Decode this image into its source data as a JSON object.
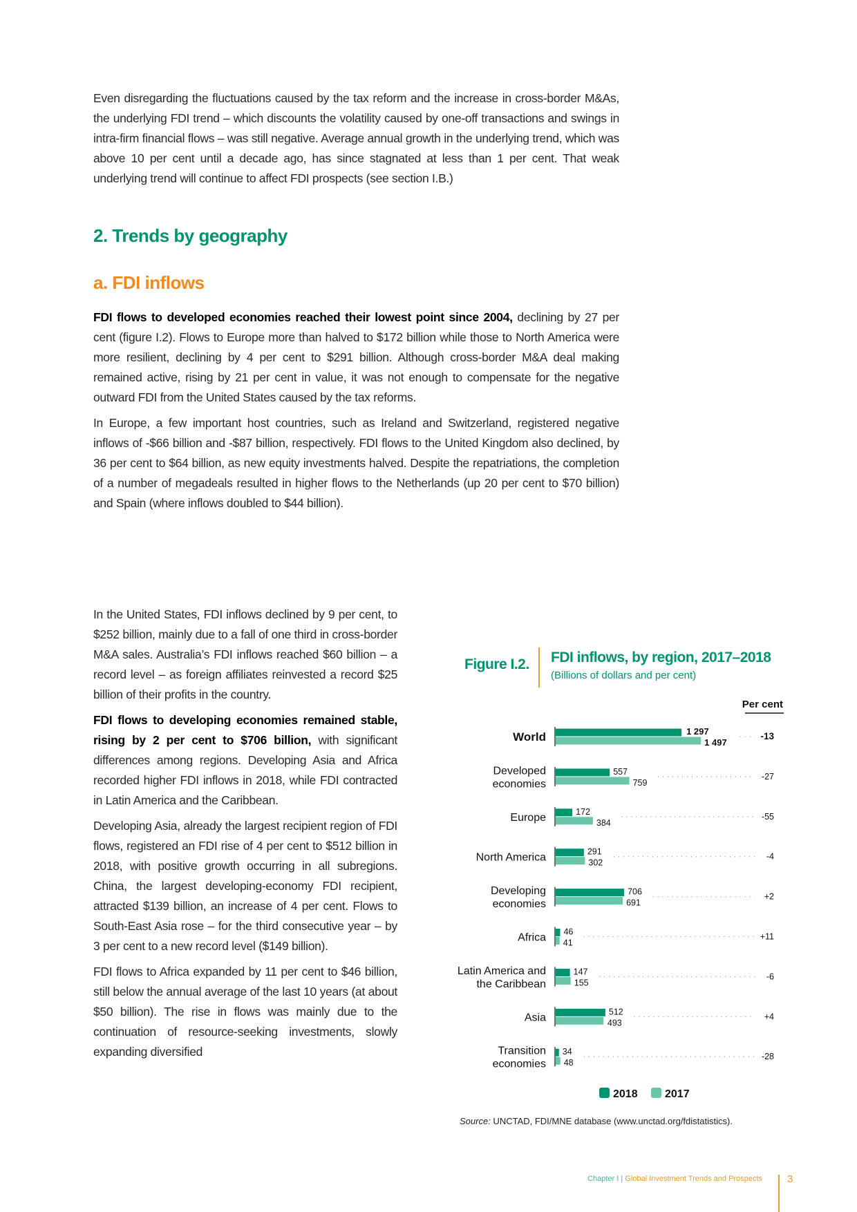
{
  "paragraphs": {
    "p1": "Even disregarding the fluctuations caused by the tax reform and the increase in cross-border M&As, the underlying FDI trend – which discounts the volatility caused by one-off transactions and swings in intra-firm financial flows – was still negative. Average annual growth in the underlying trend, which was above 10 per cent until a decade ago, has since stagnated at less than 1 per cent. That weak underlying trend will continue to affect FDI prospects (see section I.B.)",
    "p2_bold": "FDI flows to developed economies reached their lowest point since 2004,",
    "p2": " declining by 27 per cent (figure I.2). Flows to Europe more than halved to $172 billion while those to North America were more resilient, declining by 4 per cent to $291 billion. Although cross-border M&A deal making remained active, rising by 21 per cent in value, it was not enough to compensate for the negative outward FDI from the United States caused by the tax reforms.",
    "p3": "In Europe, a few important host countries, such as Ireland and Switzerland, registered negative inflows of -$66 billion and -$87 billion, respectively. FDI flows to the United Kingdom also declined, by 36 per cent to $64 billion, as new equity investments halved. Despite the repatriations, the completion of a number of megadeals resulted in higher flows to the Netherlands (up 20 per cent to $70 billion) and Spain (where inflows doubled to $44 billion).",
    "p4": "In the United States, FDI inflows declined by 9 per cent, to $252 billion, mainly due to a fall of one third in cross-border M&A sales. Australia’s FDI inflows reached $60 billion – a record level – as foreign affiliates reinvested a record $25 billion of their profits in the country.",
    "p5_bold": "FDI flows to developing economies remained stable, rising by 2 per cent to $706 billion,",
    "p5": " with significant differences among regions. Developing Asia and Africa recorded higher FDI inflows in 2018, while FDI contracted in Latin America and the Caribbean.",
    "p6": "Developing Asia, already the largest recipient region of FDI flows, registered an FDI rise of 4 per cent to $512 billion in 2018, with positive growth occurring in all subregions. China, the largest developing-economy FDI recipient, attracted $139 billion, an increase of 4 per cent. Flows to South-East Asia rose – for the third consecutive year – by 3 per cent to a new record level ($149 billion).",
    "p7": "FDI flows to Africa expanded by 11 per cent to $46 billion, still below the annual average of the last 10 years (at about $50 billion). The rise in flows was mainly due to the continuation of resource-seeking investments, slowly expanding diversified"
  },
  "headings": {
    "section": "2. Trends by geography",
    "subsection": "a. FDI inflows"
  },
  "figure": {
    "label": "Figure I.2.",
    "title": "FDI inflows, by region, 2017–2018",
    "subtitle": "(Billions of dollars and per cent)",
    "source_italic": "Source:",
    "source": " UNCTAD, FDI/MNE database (www.unctad.org/fdistatistics)."
  },
  "chart_data": {
    "type": "bar",
    "orientation": "horizontal",
    "title": "FDI inflows, by region, 2017–2018",
    "subtitle": "(Billions of dollars and per cent)",
    "percent_header": "Per cent",
    "categories": [
      "World",
      "Developed economies",
      "Europe",
      "North America",
      "Developing economies",
      "Africa",
      "Latin America and the Caribbean",
      "Asia",
      "Transition economies"
    ],
    "category_lines": [
      [
        "World"
      ],
      [
        "Developed",
        "economies"
      ],
      [
        "Europe"
      ],
      [
        "North America"
      ],
      [
        "Developing",
        "economies"
      ],
      [
        "Africa"
      ],
      [
        "Latin America and",
        "the Caribbean"
      ],
      [
        "Asia"
      ],
      [
        "Transition",
        "economies"
      ]
    ],
    "series": [
      {
        "name": "2018",
        "color": "#00936f",
        "values": [
          1297,
          557,
          172,
          291,
          706,
          46,
          147,
          512,
          34
        ]
      },
      {
        "name": "2017",
        "color": "#6cc4ab",
        "values": [
          1497,
          759,
          384,
          302,
          691,
          41,
          155,
          493,
          48
        ]
      }
    ],
    "value_labels_2018": [
      "1 297",
      "557",
      "172",
      "291",
      "706",
      "46",
      "147",
      "512",
      "34"
    ],
    "value_labels_2017": [
      "1 497",
      "759",
      "384",
      "302",
      "691",
      "41",
      "155",
      "493",
      "48"
    ],
    "percent_change": [
      "-13",
      "-27",
      "-55",
      "-4",
      "+2",
      "+11",
      "-6",
      "+4",
      "-28"
    ],
    "legend": [
      "2018",
      "2017"
    ],
    "legend_placement": "bottom",
    "grid": false
  },
  "footer": {
    "chapter": "Chapter I",
    "chapter_title": "Global Investment Trends and Prospects",
    "page": "3"
  }
}
